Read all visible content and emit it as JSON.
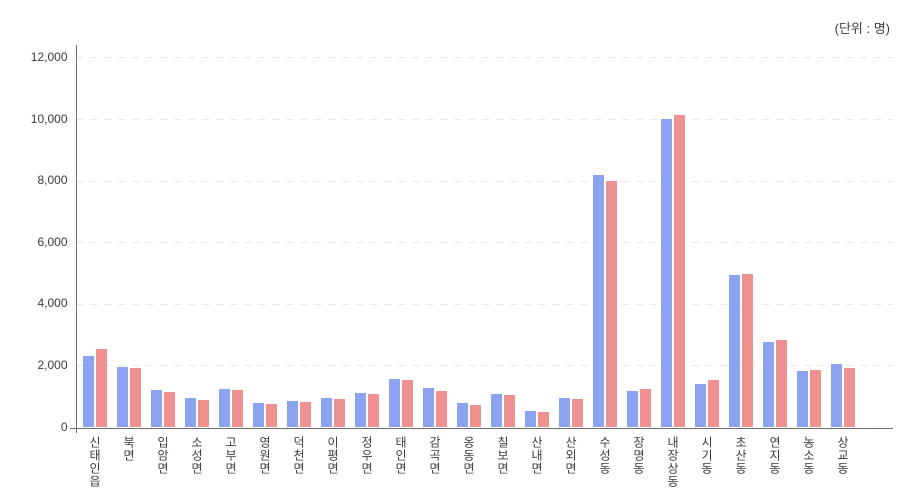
{
  "header": {
    "unit_label": "(단위 : 명)"
  },
  "chart_data": {
    "type": "bar",
    "title": "",
    "xlabel": "",
    "ylabel": "",
    "categories": [
      "신태인읍",
      "북면",
      "입암면",
      "소성면",
      "고부면",
      "영원면",
      "덕천면",
      "이평면",
      "정우면",
      "태인면",
      "감곡면",
      "옹동면",
      "칠보면",
      "산내면",
      "산외면",
      "수성동",
      "장명동",
      "내장상동",
      "시기동",
      "초산동",
      "연지동",
      "농소동",
      "상교동"
    ],
    "series": [
      {
        "name": "series-blue",
        "color": "#8CA4F0",
        "values": [
          2330,
          1950,
          1210,
          950,
          1240,
          800,
          860,
          950,
          1110,
          1560,
          1290,
          810,
          1080,
          550,
          960,
          8190,
          1180,
          10010,
          1400,
          4940,
          2770,
          1820,
          2060
        ]
      },
      {
        "name": "series-red",
        "color": "#F09191",
        "values": [
          2540,
          1930,
          1160,
          890,
          1220,
          760,
          830,
          930,
          1080,
          1530,
          1190,
          730,
          1040,
          510,
          910,
          7990,
          1240,
          10130,
          1550,
          4990,
          2850,
          1870,
          1930
        ]
      }
    ],
    "ylim": [
      0,
      12000
    ],
    "ytick_interval": 2000,
    "ytick_labels": [
      "0",
      "2,000",
      "4,000",
      "6,000",
      "8,000",
      "10,000",
      "12,000"
    ],
    "grid": "horizontal-dashed",
    "legend_position": "none"
  },
  "colors": {
    "grid": "#e9e9e9",
    "axis": "#6f6f6f",
    "text": "#3c3c3c"
  }
}
